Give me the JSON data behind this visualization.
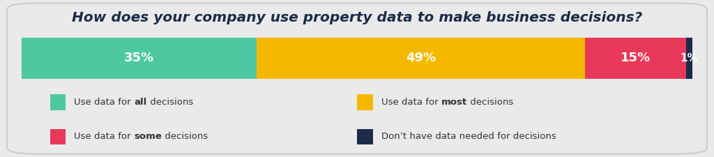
{
  "title": "How does your company use property data to make business decisions?",
  "segments": [
    {
      "label": "35%",
      "value": 35,
      "color": "#4DC8A0"
    },
    {
      "label": "49%",
      "value": 49,
      "color": "#F5B800"
    },
    {
      "label": "15%",
      "value": 15,
      "color": "#E8395A"
    },
    {
      "label": "1%",
      "value": 1,
      "color": "#1C2B4A"
    }
  ],
  "legend": [
    {
      "text_plain": "Use data for ",
      "text_bold": "all",
      "text_end": " decisions",
      "color": "#4DC8A0"
    },
    {
      "text_plain": "Use data for ",
      "text_bold": "most",
      "text_end": " decisions",
      "color": "#F5B800"
    },
    {
      "text_plain": "Use data for ",
      "text_bold": "some",
      "text_end": " decisions",
      "color": "#E8395A"
    },
    {
      "text_plain": "Don’t have data needed for decisions",
      "text_bold": "",
      "text_end": "",
      "color": "#1C2B4A"
    }
  ],
  "background_color": "#EAEAEA",
  "title_color": "#1C2B4A",
  "text_color": "#333333",
  "title_fontsize": 14.5,
  "bar_label_fontsize": 13,
  "legend_fontsize": 9.5
}
